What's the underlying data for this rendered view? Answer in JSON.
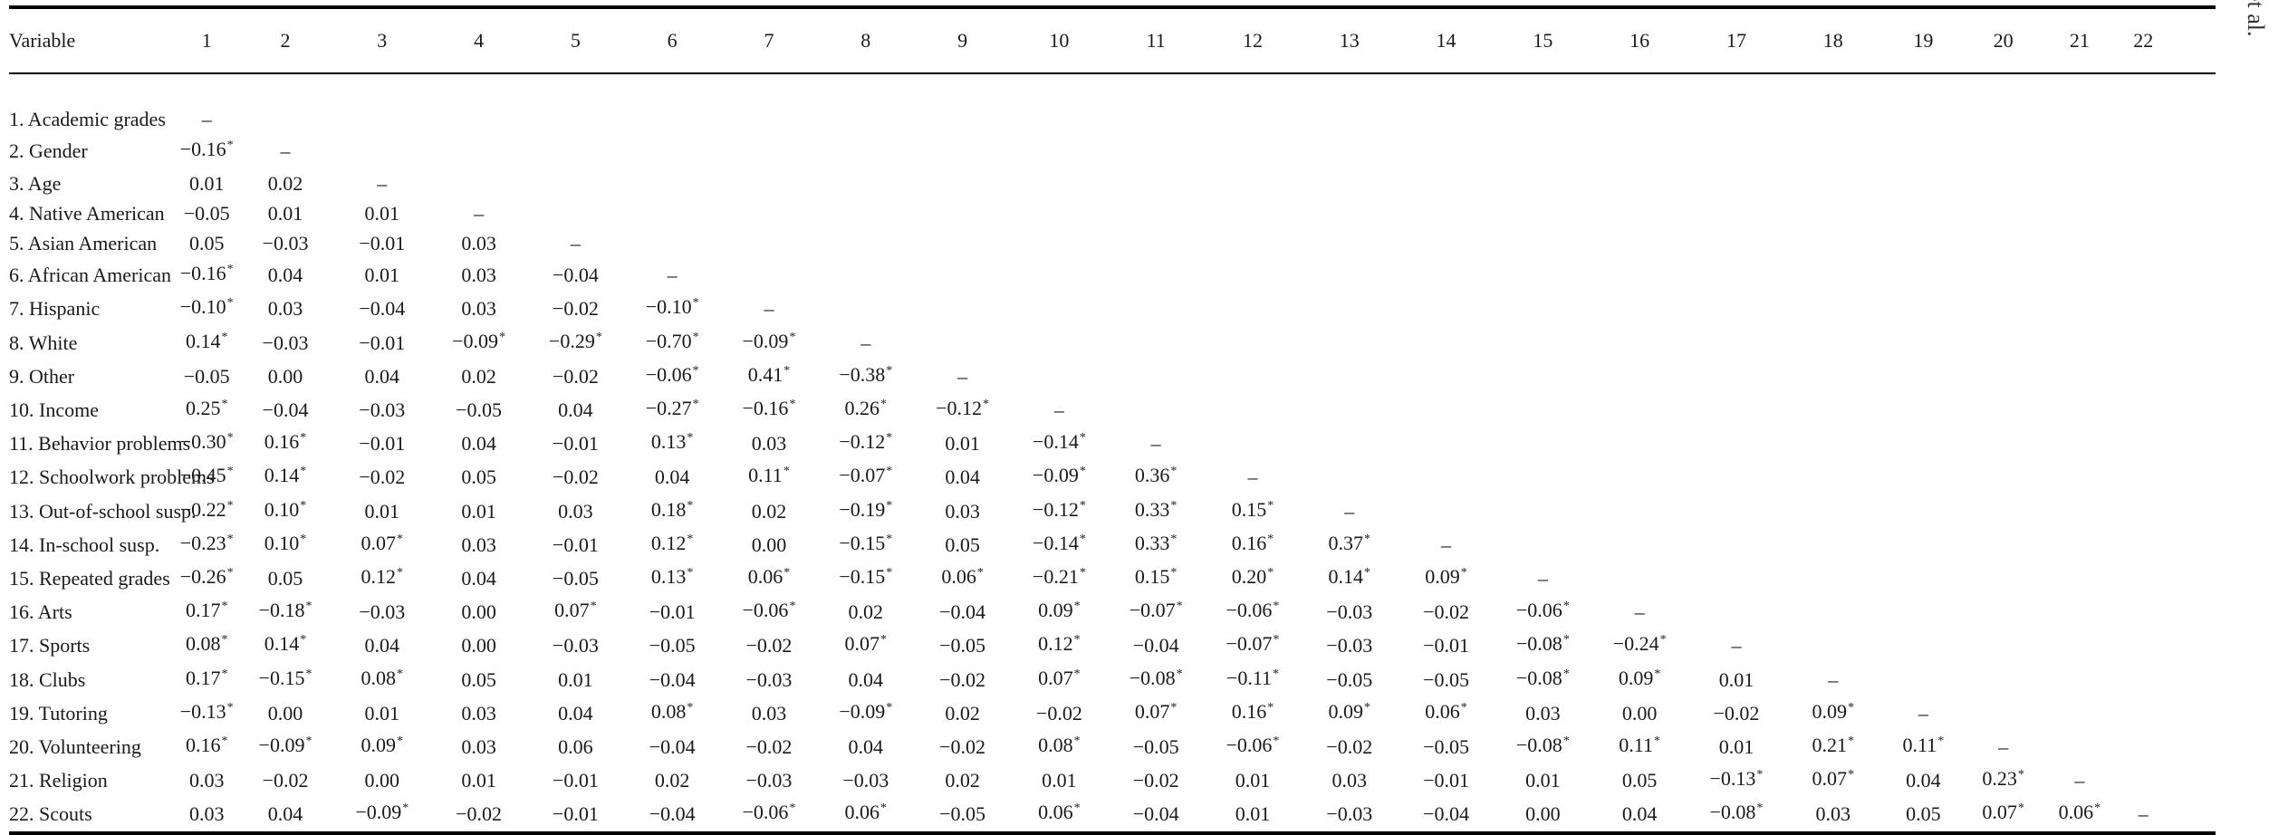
{
  "side_label": "et al.",
  "table": {
    "variable_header": "Variable",
    "column_headers": [
      "1",
      "2",
      "3",
      "4",
      "5",
      "6",
      "7",
      "8",
      "9",
      "10",
      "11",
      "12",
      "13",
      "14",
      "15",
      "16",
      "17",
      "18",
      "19",
      "20",
      "21",
      "22"
    ],
    "rows": [
      {
        "label": "1. Academic grades",
        "cells": [
          "–"
        ]
      },
      {
        "label": "2. Gender",
        "cells": [
          "−0.16*",
          "–"
        ]
      },
      {
        "label": "3. Age",
        "cells": [
          "0.01",
          "0.02",
          "–"
        ]
      },
      {
        "label": "4. Native American",
        "cells": [
          "−0.05",
          "0.01",
          "0.01",
          "–"
        ]
      },
      {
        "label": "5. Asian American",
        "cells": [
          "0.05",
          "−0.03",
          "−0.01",
          "0.03",
          "–"
        ]
      },
      {
        "label": "6. African American",
        "cells": [
          "−0.16*",
          "0.04",
          "0.01",
          "0.03",
          "−0.04",
          "–"
        ]
      },
      {
        "label": "7. Hispanic",
        "cells": [
          "−0.10*",
          "0.03",
          "−0.04",
          "0.03",
          "−0.02",
          "−0.10*",
          "–"
        ]
      },
      {
        "label": "8. White",
        "cells": [
          "0.14*",
          "−0.03",
          "−0.01",
          "−0.09*",
          "−0.29*",
          "−0.70*",
          "−0.09*",
          "–"
        ]
      },
      {
        "label": "9. Other",
        "cells": [
          "−0.05",
          "0.00",
          "0.04",
          "0.02",
          "−0.02",
          "−0.06*",
          "0.41*",
          "−0.38*",
          "–"
        ]
      },
      {
        "label": "10. Income",
        "cells": [
          "0.25*",
          "−0.04",
          "−0.03",
          "−0.05",
          "0.04",
          "−0.27*",
          "−0.16*",
          "0.26*",
          "−0.12*",
          "–"
        ]
      },
      {
        "label": "11. Behavior problems",
        "cells": [
          "−0.30*",
          "0.16*",
          "−0.01",
          "0.04",
          "−0.01",
          "0.13*",
          "0.03",
          "−0.12*",
          "0.01",
          "−0.14*",
          "–"
        ]
      },
      {
        "label": "12. Schoolwork problems",
        "cells": [
          "−0.45*",
          "0.14*",
          "−0.02",
          "0.05",
          "−0.02",
          "0.04",
          "0.11*",
          "−0.07*",
          "0.04",
          "−0.09*",
          "0.36*",
          "–"
        ]
      },
      {
        "label": "13. Out-of-school susp.",
        "cells": [
          "−0.22*",
          "0.10*",
          "0.01",
          "0.01",
          "0.03",
          "0.18*",
          "0.02",
          "−0.19*",
          "0.03",
          "−0.12*",
          "0.33*",
          "0.15*",
          "–"
        ]
      },
      {
        "label": "14. In-school susp.",
        "cells": [
          "−0.23*",
          "0.10*",
          "0.07*",
          "0.03",
          "−0.01",
          "0.12*",
          "0.00",
          "−0.15*",
          "0.05",
          "−0.14*",
          "0.33*",
          "0.16*",
          "0.37*",
          "–"
        ]
      },
      {
        "label": "15. Repeated grades",
        "cells": [
          "−0.26*",
          "0.05",
          "0.12*",
          "0.04",
          "−0.05",
          "0.13*",
          "0.06*",
          "−0.15*",
          "0.06*",
          "−0.21*",
          "0.15*",
          "0.20*",
          "0.14*",
          "0.09*",
          "–"
        ]
      },
      {
        "label": "16. Arts",
        "cells": [
          "0.17*",
          "−0.18*",
          "−0.03",
          "0.00",
          "0.07*",
          "−0.01",
          "−0.06*",
          "0.02",
          "−0.04",
          "0.09*",
          "−0.07*",
          "−0.06*",
          "−0.03",
          "−0.02",
          "−0.06*",
          "–"
        ]
      },
      {
        "label": "17. Sports",
        "cells": [
          "0.08*",
          "0.14*",
          "0.04",
          "0.00",
          "−0.03",
          "−0.05",
          "−0.02",
          "0.07*",
          "−0.05",
          "0.12*",
          "−0.04",
          "−0.07*",
          "−0.03",
          "−0.01",
          "−0.08*",
          "−0.24*",
          "–"
        ]
      },
      {
        "label": "18. Clubs",
        "cells": [
          "0.17*",
          "−0.15*",
          "0.08*",
          "0.05",
          "0.01",
          "−0.04",
          "−0.03",
          "0.04",
          "−0.02",
          "0.07*",
          "−0.08*",
          "−0.11*",
          "−0.05",
          "−0.05",
          "−0.08*",
          "0.09*",
          "0.01",
          "–"
        ]
      },
      {
        "label": "19. Tutoring",
        "cells": [
          "−0.13*",
          "0.00",
          "0.01",
          "0.03",
          "0.04",
          "0.08*",
          "0.03",
          "−0.09*",
          "0.02",
          "−0.02",
          "0.07*",
          "0.16*",
          "0.09*",
          "0.06*",
          "0.03",
          "0.00",
          "−0.02",
          "0.09*",
          "–"
        ]
      },
      {
        "label": "20. Volunteering",
        "cells": [
          "0.16*",
          "−0.09*",
          "0.09*",
          "0.03",
          "0.06",
          "−0.04",
          "−0.02",
          "0.04",
          "−0.02",
          "0.08*",
          "−0.05",
          "−0.06*",
          "−0.02",
          "−0.05",
          "−0.08*",
          "0.11*",
          "0.01",
          "0.21*",
          "0.11*",
          "–"
        ]
      },
      {
        "label": "21. Religion",
        "cells": [
          "0.03",
          "−0.02",
          "0.00",
          "0.01",
          "−0.01",
          "0.02",
          "−0.03",
          "−0.03",
          "0.02",
          "0.01",
          "−0.02",
          "0.01",
          "0.03",
          "−0.01",
          "0.01",
          "0.05",
          "−0.13*",
          "0.07*",
          "0.04",
          "0.23*",
          "–"
        ]
      },
      {
        "label": "22. Scouts",
        "cells": [
          "0.03",
          "0.04",
          "−0.09*",
          "−0.02",
          "−0.01",
          "−0.04",
          "−0.06*",
          "0.06*",
          "−0.05",
          "0.06*",
          "−0.04",
          "0.01",
          "−0.03",
          "−0.04",
          "0.00",
          "0.04",
          "−0.08*",
          "0.03",
          "0.05",
          "0.07*",
          "0.06*",
          "–"
        ]
      }
    ]
  }
}
